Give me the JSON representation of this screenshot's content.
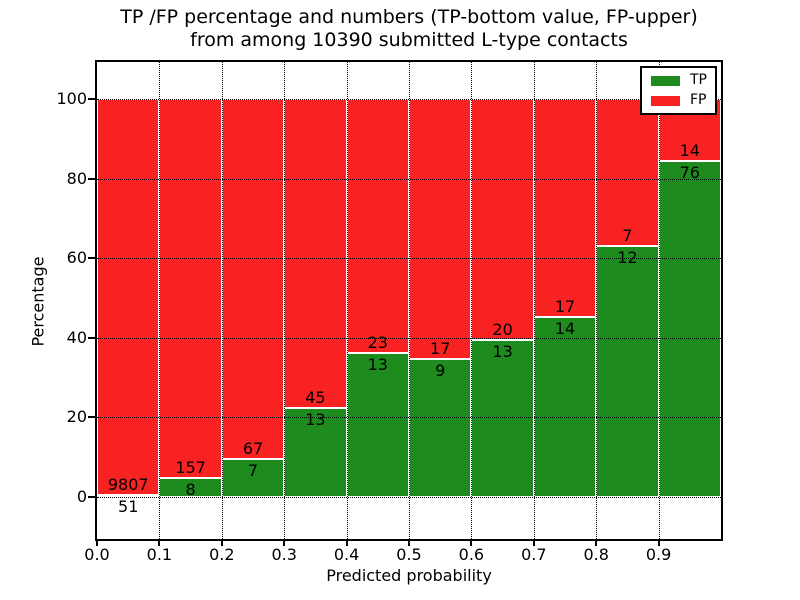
{
  "title_line1": "TP /FP percentage and numbers (TP-bottom value, FP-upper)",
  "title_line2": "from among 10390 submitted L-type contacts",
  "axes": {
    "xlabel": "Predicted probability",
    "ylabel": "Percentage"
  },
  "legend": {
    "items": [
      {
        "label": "TP",
        "color": "#1e8b1e"
      },
      {
        "label": "FP",
        "color": "#f92222"
      }
    ],
    "position": "upper right"
  },
  "chart_data": {
    "type": "bar",
    "stacked": true,
    "normalized": "each bin scaled to 100%",
    "title": "TP /FP percentage and numbers (TP-bottom value, FP-upper) from among 10390 submitted L-type contacts",
    "xlabel": "Predicted probability",
    "ylabel": "Percentage",
    "total_contacts": 10390,
    "bin_width": 0.1,
    "bin_starts": [
      0.0,
      0.1,
      0.2,
      0.3,
      0.4,
      0.5,
      0.6,
      0.7,
      0.8,
      0.9
    ],
    "x_tick_labels": [
      "0.0",
      "0.1",
      "0.2",
      "0.3",
      "0.4",
      "0.5",
      "0.6",
      "0.7",
      "0.8",
      "0.9"
    ],
    "y_ticks": [
      0,
      20,
      40,
      60,
      80,
      100
    ],
    "y_tick_labels": [
      "0",
      "20",
      "40",
      "60",
      "80",
      "100"
    ],
    "xlim": [
      0.0,
      1.0
    ],
    "ylim": [
      -10.5,
      109.3
    ],
    "grid": "dotted black, drawn above bars",
    "legend_position": "upper right",
    "series": [
      {
        "name": "TP",
        "color": "#1e8b1e",
        "counts": [
          51,
          8,
          7,
          13,
          13,
          9,
          13,
          14,
          12,
          76
        ]
      },
      {
        "name": "FP",
        "color": "#f92222",
        "counts": [
          9807,
          157,
          67,
          45,
          23,
          17,
          20,
          17,
          7,
          14
        ]
      }
    ],
    "tp_percent": [
      0.52,
      4.85,
      9.46,
      22.41,
      36.11,
      34.62,
      39.39,
      45.16,
      63.16,
      84.44
    ]
  },
  "colors": {
    "tp": "#1e8b1e",
    "fp": "#f92222",
    "grid": "#000000",
    "frame": "#000000",
    "background": "#ffffff"
  }
}
